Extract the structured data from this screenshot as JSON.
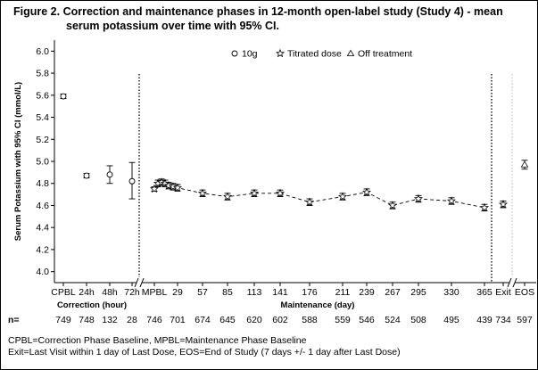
{
  "title": {
    "line1": "Figure 2. Correction and maintenance phases in 12-month open-label study (Study 4) - mean",
    "line2": "serum potassium over time with 95% CI."
  },
  "legend": {
    "items": [
      {
        "marker": "circle",
        "label": "10g"
      },
      {
        "marker": "star",
        "label": "Titrated dose"
      },
      {
        "marker": "triangle",
        "label": "Off treatment"
      }
    ]
  },
  "axes": {
    "ylabel": "Serum Potassium with 95% CI (mmol/L)",
    "y_ticks": [
      "4.0",
      "4.2",
      "4.4",
      "4.6",
      "4.8",
      "5.0",
      "5.2",
      "5.4",
      "5.6",
      "5.8",
      "6.0"
    ],
    "section_labels": {
      "correction": "Correction (hour)",
      "maintenance": "Maintenance (day)"
    },
    "n_label": "n="
  },
  "chart_data": {
    "type": "line",
    "ylim": [
      3.9,
      6.1
    ],
    "x_tick_labels": [
      "CPBL",
      "24h",
      "48h",
      "72h",
      "MPBL",
      "29",
      "57",
      "85",
      "113",
      "141",
      "176",
      "211",
      "239",
      "267",
      "295",
      "330",
      "365",
      "Exit",
      "EOS"
    ],
    "n_values": [
      "749",
      "748",
      "132",
      "28",
      "746",
      "701",
      "674",
      "645",
      "620",
      "602",
      "588",
      "559",
      "546",
      "524",
      "508",
      "495",
      "439",
      "734",
      "597"
    ],
    "correction_phase": [
      {
        "x": "CPBL",
        "y": 5.59,
        "lo": 5.57,
        "hi": 5.61
      },
      {
        "x": "24h",
        "y": 4.87,
        "lo": 4.85,
        "hi": 4.89
      },
      {
        "x": "48h",
        "y": 4.88,
        "lo": 4.8,
        "hi": 4.96
      },
      {
        "x": "72h",
        "y": 4.82,
        "lo": 4.66,
        "hi": 4.99
      }
    ],
    "maintenance_phase": [
      {
        "x": "MPBL",
        "y": 4.75,
        "lo": 4.73,
        "hi": 4.77
      },
      {
        "x": "1",
        "y": 4.8,
        "lo": 4.77,
        "hi": 4.83
      },
      {
        "x": "2",
        "y": 4.81,
        "lo": 4.78,
        "hi": 4.84
      },
      {
        "x": "3",
        "y": 4.8,
        "lo": 4.77,
        "hi": 4.83
      },
      {
        "x": "4",
        "y": 4.78,
        "lo": 4.75,
        "hi": 4.81
      },
      {
        "x": "5",
        "y": 4.77,
        "lo": 4.74,
        "hi": 4.8
      },
      {
        "x": "29",
        "y": 4.76,
        "lo": 4.73,
        "hi": 4.79
      },
      {
        "x": "57",
        "y": 4.71,
        "lo": 4.68,
        "hi": 4.74
      },
      {
        "x": "85",
        "y": 4.68,
        "lo": 4.65,
        "hi": 4.71
      },
      {
        "x": "113",
        "y": 4.71,
        "lo": 4.68,
        "hi": 4.74
      },
      {
        "x": "141",
        "y": 4.71,
        "lo": 4.68,
        "hi": 4.74
      },
      {
        "x": "176",
        "y": 4.63,
        "lo": 4.6,
        "hi": 4.66
      },
      {
        "x": "211",
        "y": 4.68,
        "lo": 4.65,
        "hi": 4.71
      },
      {
        "x": "239",
        "y": 4.72,
        "lo": 4.69,
        "hi": 4.75
      },
      {
        "x": "267",
        "y": 4.6,
        "lo": 4.57,
        "hi": 4.63
      },
      {
        "x": "295",
        "y": 4.66,
        "lo": 4.63,
        "hi": 4.69
      },
      {
        "x": "330",
        "y": 4.64,
        "lo": 4.61,
        "hi": 4.67
      },
      {
        "x": "365",
        "y": 4.58,
        "lo": 4.55,
        "hi": 4.61
      }
    ],
    "exit": {
      "x": "Exit",
      "y": 4.61,
      "lo": 4.58,
      "hi": 4.64
    },
    "eos": {
      "x": "EOS",
      "y": 4.97,
      "lo": 4.93,
      "hi": 5.01
    }
  },
  "footnotes": {
    "line1": "CPBL=Correction Phase Baseline, MPBL=Maintenance Phase Baseline",
    "line2": "Exit=Last Visit within 1 day of Last Dose, EOS=End of Study (7 days +/- 1 day after Last Dose)"
  }
}
